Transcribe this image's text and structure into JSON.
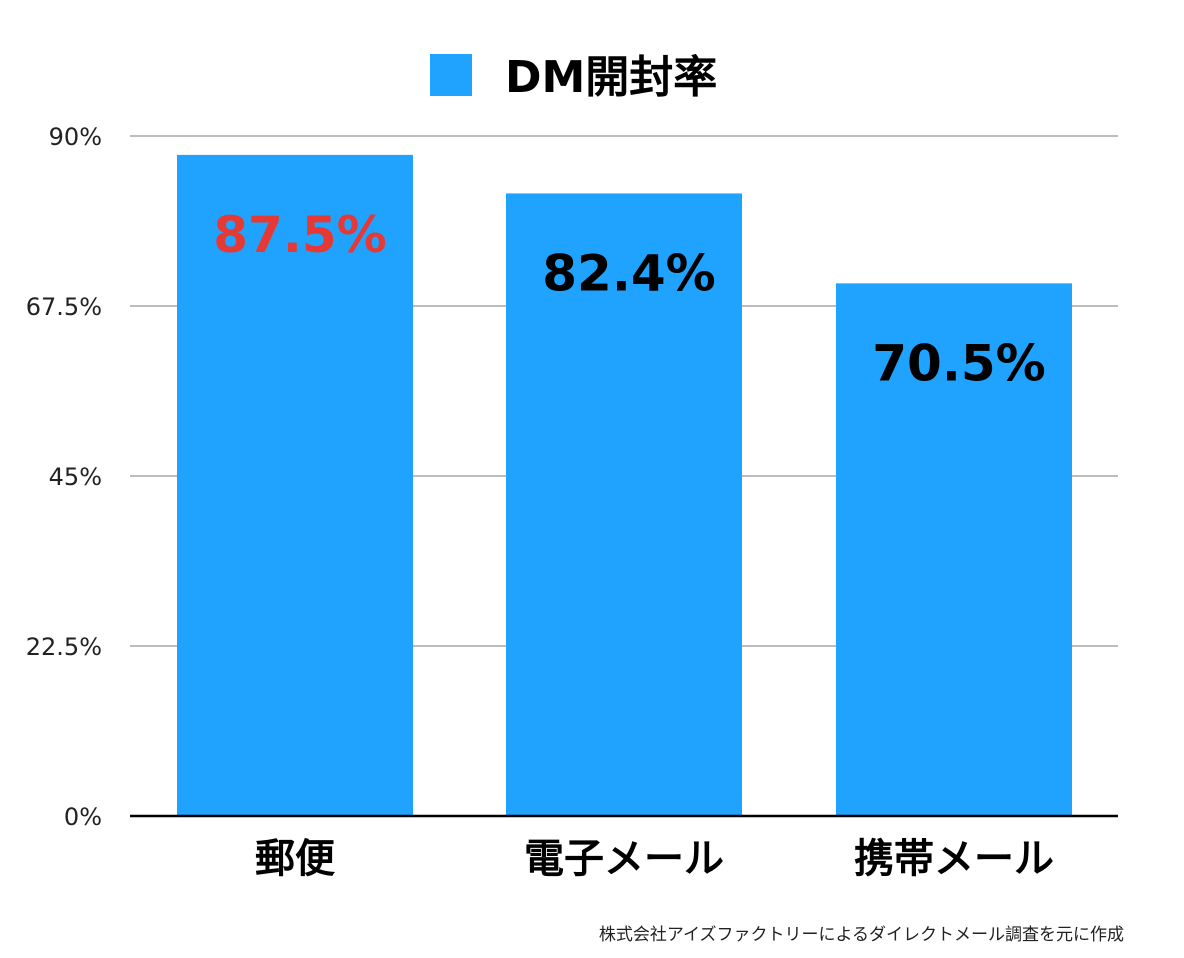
{
  "chart_data": {
    "type": "bar",
    "categories": [
      "郵便",
      "電子メール",
      "携帯メール"
    ],
    "series": [
      {
        "name": "DM開封率",
        "values": [
          87.5,
          82.4,
          70.5
        ],
        "color": "#1FA3FF"
      }
    ],
    "value_labels": [
      "87.5%",
      "82.4%",
      "70.5%"
    ],
    "value_label_colors": [
      "#E53935",
      "#000000",
      "#000000"
    ],
    "ylim": [
      0,
      90
    ],
    "yticks": [
      0,
      22.5,
      45,
      67.5,
      90
    ],
    "ytick_labels": [
      "0%",
      "22.5%",
      "45%",
      "67.5%",
      "90%"
    ],
    "grid": true,
    "legend_position": "top-center",
    "source_note": "株式会社アイズファクトリーによるダイレクトメール調査を元に作成"
  }
}
